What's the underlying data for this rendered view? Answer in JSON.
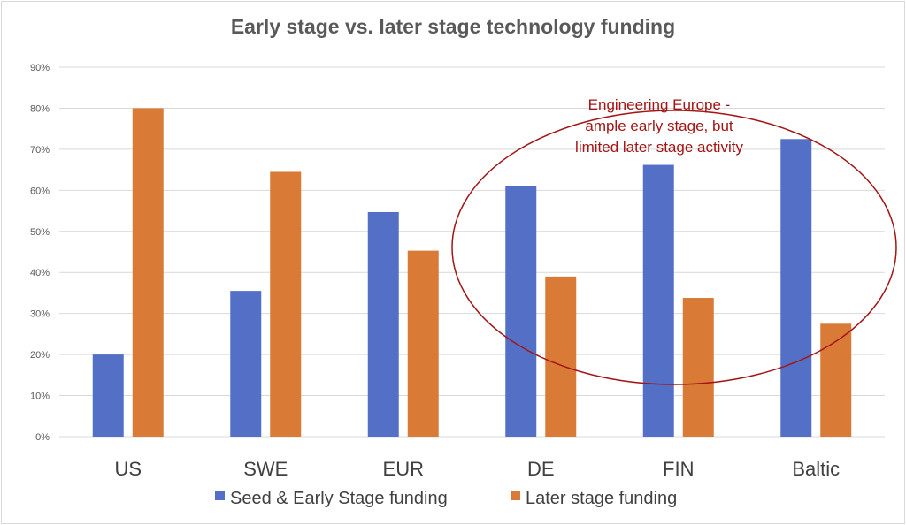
{
  "chart_data": {
    "type": "bar",
    "title": "Early stage vs. later stage technology funding",
    "xlabel": "",
    "ylabel": "",
    "ylim": [
      0,
      90
    ],
    "yticks": [
      "0%",
      "10%",
      "20%",
      "30%",
      "40%",
      "50%",
      "60%",
      "70%",
      "80%",
      "90%"
    ],
    "grid": true,
    "categories": [
      "US",
      "SWE",
      "EUR",
      "DE",
      "FIN",
      "Baltic"
    ],
    "series": [
      {
        "name": "Seed & Early Stage funding",
        "color": "#5470c6",
        "values": [
          20,
          35.5,
          54.7,
          61,
          66.2,
          72.5
        ]
      },
      {
        "name": "Later stage funding",
        "color": "#d97b37",
        "values": [
          80,
          64.5,
          45.3,
          39,
          33.8,
          27.5
        ]
      }
    ],
    "legend_position": "bottom",
    "annotation": {
      "lines": [
        "Engineering Europe -",
        "ample early stage, but",
        "limited later stage activity"
      ],
      "color": "#a31515"
    }
  }
}
